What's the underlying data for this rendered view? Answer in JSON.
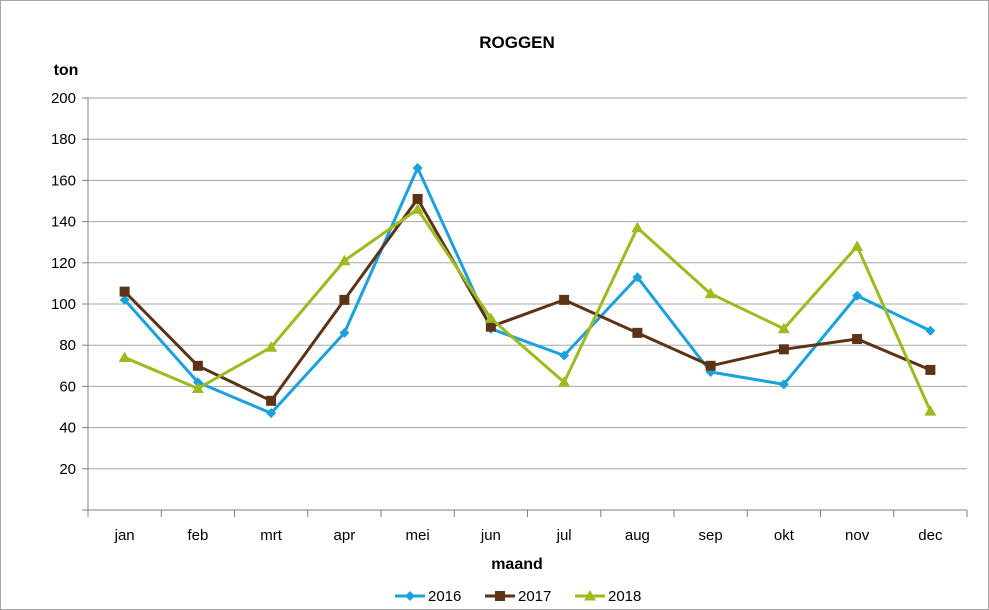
{
  "chart_data": {
    "type": "line",
    "title": "ROGGEN",
    "ylabel": "ton",
    "xlabel": "maand",
    "categories": [
      "jan",
      "feb",
      "mrt",
      "apr",
      "mei",
      "jun",
      "jul",
      "aug",
      "sep",
      "okt",
      "nov",
      "dec"
    ],
    "ylim": [
      0,
      200
    ],
    "yticks": [
      20,
      40,
      60,
      80,
      100,
      120,
      140,
      160,
      180,
      200
    ],
    "grid": true,
    "legend": "bottom",
    "series": [
      {
        "name": "2016",
        "color": "#1ba1dc",
        "marker": "diamond",
        "values": [
          102,
          62,
          47,
          86,
          166,
          88,
          75,
          113,
          67,
          61,
          104,
          87
        ]
      },
      {
        "name": "2017",
        "color": "#5c3317",
        "marker": "square",
        "values": [
          106,
          70,
          53,
          102,
          151,
          89,
          102,
          86,
          70,
          78,
          83,
          68
        ]
      },
      {
        "name": "2018",
        "color": "#9bbb1f",
        "marker": "triangle",
        "values": [
          74,
          59,
          79,
          121,
          146,
          93,
          62,
          137,
          105,
          88,
          128,
          48
        ]
      }
    ]
  }
}
